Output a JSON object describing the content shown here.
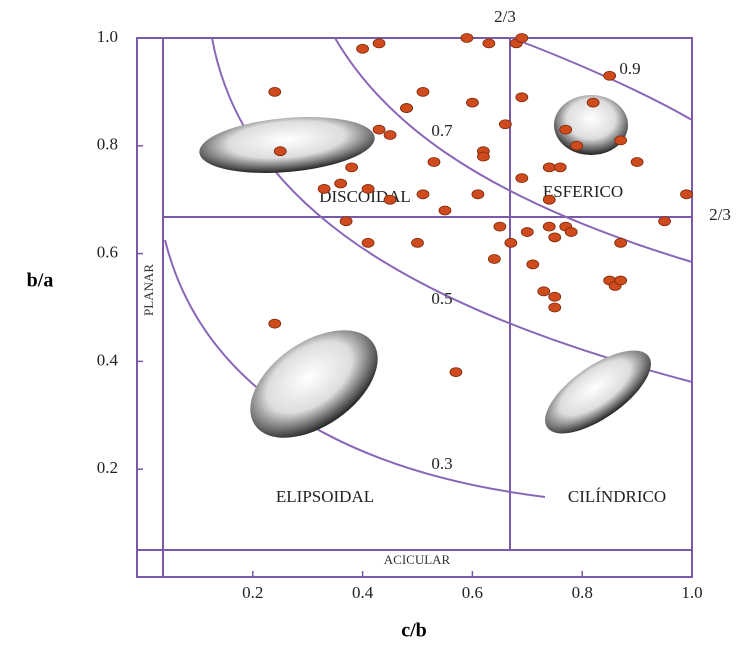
{
  "chart_data": {
    "type": "scatter",
    "x_label": "c/b",
    "y_label": "b/a",
    "xlim": [
      0,
      1
    ],
    "ylim": [
      0,
      1
    ],
    "xticks": [
      0.2,
      0.4,
      0.6,
      0.8,
      {
        "value": 1,
        "label": "1.0"
      }
    ],
    "yticks": [
      0.2,
      0.4,
      0.6,
      0.8,
      {
        "value": 1,
        "label": "1.0"
      }
    ],
    "color": "#cf4a1c",
    "annotations": {
      "top_two_thirds": "2/3",
      "right_two_thirds": "2/3",
      "curve_09": "0.9",
      "curve_07": "0.7",
      "curve_05": "0.5",
      "curve_03": "0.3",
      "discoidal": "DISCOIDAL",
      "esferico": "ESFERICO",
      "elipsoidal": "ELIPSOIDAL",
      "cilindrico": "CILÍNDRICO",
      "planar": "PLANAR",
      "acicular": "ACICULAR"
    },
    "x": [
      0.24,
      0.25,
      0.24,
      0.4,
      0.43,
      0.43,
      0.45,
      0.48,
      0.48,
      0.51,
      0.59,
      0.63,
      0.68,
      0.69,
      0.6,
      0.69,
      0.66,
      0.62,
      0.62,
      0.53,
      0.61,
      0.69,
      0.85,
      0.82,
      0.77,
      0.87,
      0.79,
      0.74,
      0.76,
      0.9,
      0.99,
      0.95,
      0.33,
      0.36,
      0.38,
      0.41,
      0.45,
      0.51,
      0.37,
      0.41,
      0.5,
      0.55,
      0.65,
      0.67,
      0.7,
      0.64,
      0.71,
      0.74,
      0.74,
      0.75,
      0.77,
      0.78,
      0.87,
      0.73,
      0.75,
      0.75,
      0.85,
      0.86,
      0.87,
      0.57
    ],
    "values": [
      0.9,
      0.79,
      0.47,
      0.98,
      0.99,
      0.83,
      0.82,
      0.87,
      0.87,
      0.9,
      1.0,
      0.99,
      0.99,
      1.0,
      0.88,
      0.89,
      0.84,
      0.79,
      0.78,
      0.77,
      0.71,
      0.74,
      0.93,
      0.88,
      0.83,
      0.81,
      0.8,
      0.76,
      0.76,
      0.77,
      0.71,
      0.66,
      0.72,
      0.73,
      0.76,
      0.72,
      0.7,
      0.71,
      0.66,
      0.62,
      0.62,
      0.68,
      0.65,
      0.62,
      0.64,
      0.59,
      0.58,
      0.7,
      0.65,
      0.63,
      0.65,
      0.64,
      0.62,
      0.53,
      0.52,
      0.5,
      0.55,
      0.54,
      0.55,
      0.38
    ]
  }
}
